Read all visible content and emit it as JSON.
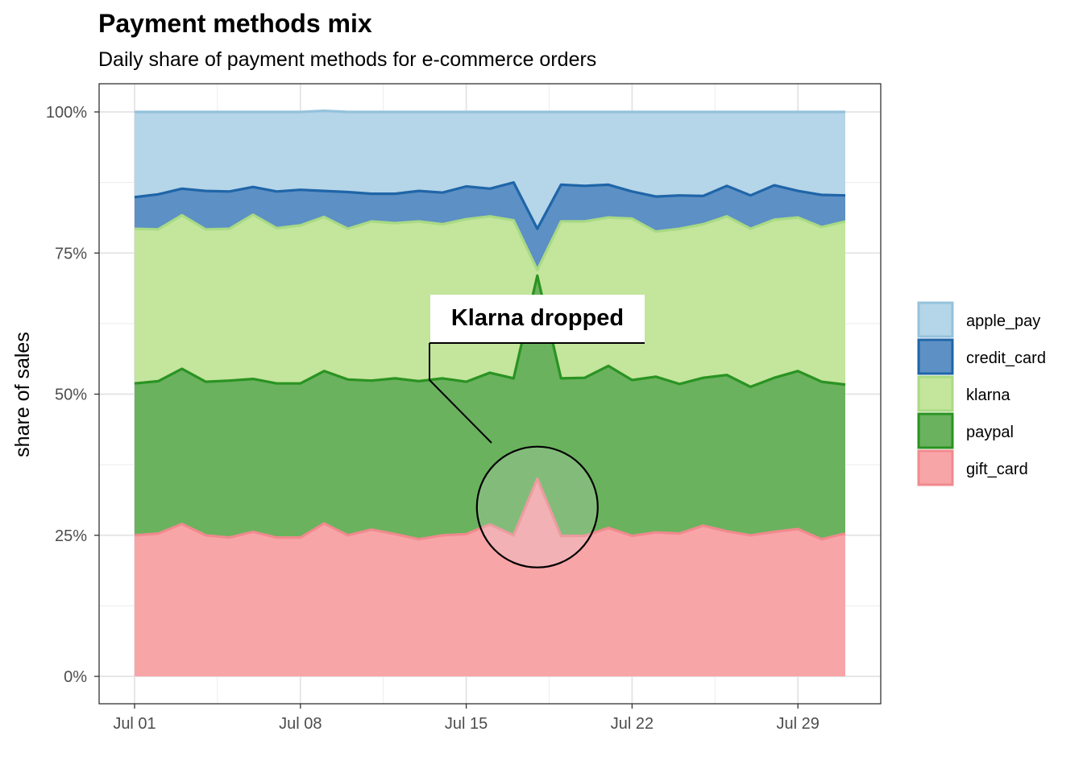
{
  "chart_data": {
    "type": "area",
    "stacked": true,
    "title": "Payment methods mix",
    "subtitle": "Daily share of payment methods for e-commerce orders",
    "xlabel": "",
    "ylabel": "share of sales",
    "x_ticks": [
      "Jul 01",
      "Jul 08",
      "Jul 15",
      "Jul 22",
      "Jul 29"
    ],
    "y_ticks": [
      "0%",
      "25%",
      "50%",
      "75%",
      "100%"
    ],
    "ylim": [
      0,
      100
    ],
    "grid": true,
    "legend_position": "right",
    "x": [
      "Jul 01",
      "Jul 02",
      "Jul 03",
      "Jul 04",
      "Jul 05",
      "Jul 06",
      "Jul 07",
      "Jul 08",
      "Jul 09",
      "Jul 10",
      "Jul 11",
      "Jul 12",
      "Jul 13",
      "Jul 14",
      "Jul 15",
      "Jul 16",
      "Jul 17",
      "Jul 18",
      "Jul 19",
      "Jul 20",
      "Jul 21",
      "Jul 22",
      "Jul 23",
      "Jul 24",
      "Jul 25",
      "Jul 26",
      "Jul 27",
      "Jul 28",
      "Jul 29",
      "Jul 30",
      "Jul 31"
    ],
    "series": [
      {
        "name": "gift_card",
        "fill": "#F8A5A8",
        "line": "#F08A8E",
        "values": [
          25.0,
          25.3,
          27.0,
          25.0,
          24.6,
          25.6,
          24.6,
          24.6,
          27.1,
          25.0,
          26.0,
          25.2,
          24.3,
          25.0,
          25.2,
          26.9,
          25.0,
          35.0,
          24.9,
          24.9,
          26.3,
          24.9,
          25.5,
          25.3,
          26.7,
          25.7,
          25.0,
          25.6,
          26.1,
          24.3,
          25.3
        ]
      },
      {
        "name": "paypal",
        "fill": "#6AB25E",
        "line": "#2A9322",
        "values": [
          26.9,
          27.0,
          27.5,
          27.2,
          27.8,
          27.1,
          27.3,
          27.3,
          27.0,
          27.6,
          26.4,
          27.6,
          28.0,
          27.8,
          27.0,
          26.9,
          27.8,
          36.0,
          27.9,
          28.0,
          28.7,
          27.6,
          27.6,
          26.5,
          26.2,
          27.7,
          26.3,
          27.3,
          28.0,
          27.9,
          26.4
        ]
      },
      {
        "name": "klarna",
        "fill": "#C3E59C",
        "line": "#A9DA84",
        "values": [
          27.4,
          26.9,
          27.2,
          27.0,
          26.9,
          29.1,
          27.5,
          28.0,
          27.3,
          26.7,
          28.2,
          27.5,
          28.3,
          27.3,
          28.8,
          27.7,
          28.0,
          1.0,
          27.8,
          27.7,
          26.3,
          28.6,
          25.7,
          27.5,
          27.2,
          28.1,
          28.0,
          28.0,
          27.2,
          27.4,
          28.9
        ]
      },
      {
        "name": "credit_card",
        "fill": "#5D90C4",
        "line": "#1F65A8",
        "values": [
          5.6,
          6.2,
          4.7,
          6.8,
          6.6,
          4.9,
          6.5,
          6.3,
          4.6,
          6.5,
          4.9,
          5.2,
          5.4,
          5.6,
          5.8,
          4.9,
          6.7,
          7.3,
          6.5,
          6.3,
          5.8,
          4.8,
          6.2,
          5.9,
          5.0,
          5.4,
          5.9,
          6.1,
          4.7,
          5.7,
          4.6
        ]
      },
      {
        "name": "apple_pay",
        "fill": "#B5D5E8",
        "line": "#94C2DC",
        "values": [
          15.1,
          14.6,
          13.6,
          14.0,
          14.1,
          13.3,
          14.1,
          13.8,
          14.2,
          14.2,
          14.5,
          14.5,
          14.0,
          14.3,
          13.2,
          13.6,
          12.5,
          20.7,
          12.9,
          13.1,
          12.9,
          14.1,
          15.0,
          14.8,
          14.9,
          13.1,
          14.8,
          13.0,
          14.0,
          14.7,
          14.8
        ]
      }
    ],
    "legend": [
      "apple_pay",
      "credit_card",
      "klarna",
      "paypal",
      "gift_card"
    ],
    "annotation": {
      "label": "Klarna dropped",
      "date": "Jul 18",
      "circle_center_y": 30
    }
  }
}
